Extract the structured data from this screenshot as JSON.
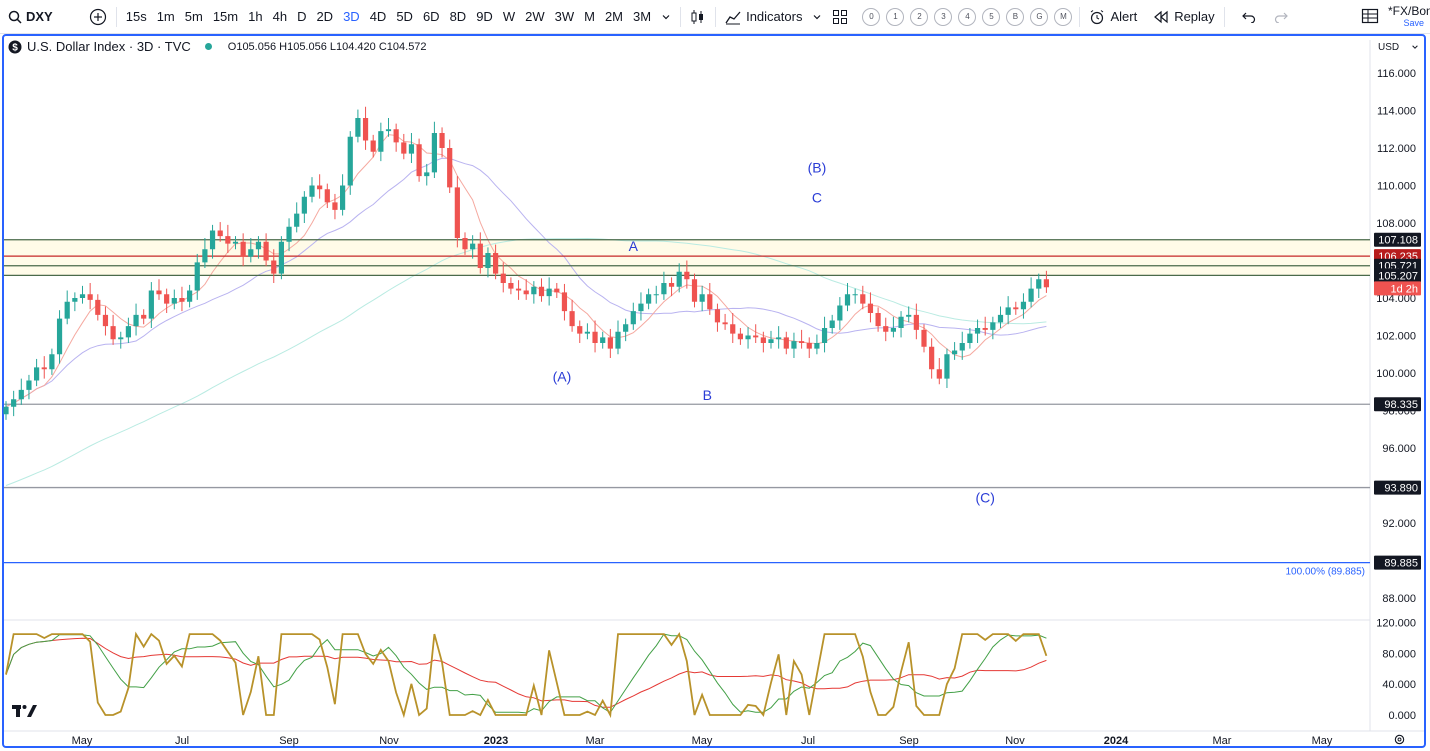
{
  "toolbar": {
    "symbol": "DXY",
    "intervals": [
      "15s",
      "1m",
      "5m",
      "15m",
      "1h",
      "4h",
      "D",
      "2D",
      "3D",
      "4D",
      "5D",
      "6D",
      "8D",
      "9D",
      "W",
      "2W",
      "3W",
      "M",
      "2M",
      "3M"
    ],
    "active_interval": "3D",
    "indicators_label": "Indicators",
    "template_buttons": [
      "0",
      "1",
      "2",
      "3",
      "4",
      "5",
      "B",
      "G",
      "M"
    ],
    "alert_label": "Alert",
    "replay_label": "Replay",
    "layout_name": "*FX/Bon",
    "save_label": "Save"
  },
  "legend": {
    "title": "U.S. Dollar Index · 3D · TVC",
    "ohlc": "O105.056 H105.056 L104.420 C104.572"
  },
  "currency": "USD",
  "chart_data": {
    "type": "candlestick",
    "x_labels": [
      "May",
      "Jul",
      "Sep",
      "Nov",
      "2023",
      "Mar",
      "May",
      "Jul",
      "Sep",
      "Nov",
      "2024",
      "Mar",
      "May"
    ],
    "y_ticks": [
      "116.000",
      "114.000",
      "112.000",
      "110.000",
      "108.000",
      "104.000",
      "102.000",
      "100.000",
      "98.000",
      "96.000",
      "92.000",
      "88.000"
    ],
    "price_tags": [
      {
        "label": "107.108",
        "value": 107.108,
        "bg": "#131722"
      },
      {
        "label": "106.235",
        "value": 106.235,
        "bg": "#b71c1c"
      },
      {
        "label": "105.721",
        "value": 105.721,
        "bg": "#131722"
      },
      {
        "label": "105.207",
        "value": 105.207,
        "bg": "#131722"
      },
      {
        "label": "1d 2h",
        "value": 104.57,
        "bg": "#ef5350"
      },
      {
        "label": "98.335",
        "value": 98.335,
        "bg": "#131722"
      },
      {
        "label": "93.890",
        "value": 93.89,
        "bg": "#131722"
      },
      {
        "label": "89.885",
        "value": 89.885,
        "bg": "#131722"
      }
    ],
    "horizontal_lines": [
      {
        "value": 107.108,
        "color": "#4a6a4a"
      },
      {
        "value": 106.235,
        "color": "#c62828"
      },
      {
        "value": 105.721,
        "color": "#4a6a4a"
      },
      {
        "value": 105.207,
        "color": "#4a6a4a"
      },
      {
        "value": 98.335,
        "color": "#9598a1"
      },
      {
        "value": 93.89,
        "color": "#9598a1"
      },
      {
        "value": 89.885,
        "color": "#2962ff"
      }
    ],
    "fib_label": "100.00% (89.885)",
    "wave_labels": [
      {
        "text": "(B)",
        "date_index": 318,
        "value": 110.7
      },
      {
        "text": "C",
        "date_index": 318,
        "value": 109.1
      },
      {
        "text": "A",
        "date_index": 246,
        "value": 106.5
      },
      {
        "text": "(A)",
        "date_index": 218,
        "value": 99.55
      },
      {
        "text": "B",
        "date_index": 275,
        "value": 98.55
      },
      {
        "text": "(C)",
        "date_index": 384,
        "value": 93.1
      }
    ],
    "closes": [
      98.2,
      98.6,
      99.1,
      99.6,
      100.3,
      100.2,
      101.0,
      102.9,
      103.8,
      104.0,
      104.2,
      103.9,
      103.1,
      102.5,
      101.8,
      101.9,
      102.5,
      103.1,
      102.9,
      104.4,
      104.2,
      103.7,
      104.0,
      103.8,
      104.4,
      105.9,
      106.6,
      107.6,
      107.3,
      106.9,
      107.0,
      106.2,
      106.6,
      107.0,
      106.0,
      105.3,
      107.0,
      107.8,
      108.5,
      109.4,
      110.0,
      109.8,
      109.1,
      108.7,
      110.0,
      112.6,
      113.6,
      112.4,
      111.8,
      112.9,
      113.0,
      112.3,
      111.7,
      112.2,
      110.5,
      110.7,
      112.8,
      112.0,
      109.9,
      107.2,
      106.6,
      106.9,
      105.6,
      106.4,
      105.3,
      104.8,
      104.5,
      104.4,
      104.2,
      104.6,
      104.1,
      104.5,
      104.3,
      103.3,
      102.5,
      102.1,
      102.2,
      101.6,
      101.9,
      101.3,
      102.2,
      102.6,
      103.3,
      103.7,
      104.2,
      104.2,
      104.8,
      104.6,
      105.4,
      105.0,
      103.8,
      104.2,
      103.4,
      102.7,
      102.6,
      102.1,
      101.8,
      102.0,
      101.9,
      101.6,
      101.8,
      101.9,
      101.3,
      101.7,
      101.6,
      101.3,
      101.6,
      102.4,
      102.8,
      103.6,
      104.2,
      104.2,
      103.7,
      103.2,
      102.5,
      102.2,
      102.4,
      103.0,
      103.1,
      102.3,
      101.4,
      100.2,
      99.7,
      101.0,
      101.2,
      101.6,
      102.1,
      102.4,
      102.3,
      102.7,
      103.1,
      103.5,
      103.4,
      103.8,
      104.5,
      105.0,
      104.572
    ],
    "close_date_indices": [
      0,
      3,
      6,
      9,
      12,
      15,
      18,
      21,
      24,
      27,
      30,
      33,
      36,
      39,
      42,
      45,
      48,
      51,
      54,
      57,
      60,
      63,
      66,
      69,
      72,
      75,
      78,
      81,
      84,
      87,
      90,
      93,
      96,
      99,
      102,
      105,
      108,
      111,
      114,
      117,
      120,
      123,
      126,
      129,
      132,
      135,
      138,
      141,
      144,
      147,
      150,
      153,
      156,
      159,
      162,
      165,
      168,
      171,
      174,
      177,
      180,
      183,
      186,
      189,
      192,
      195,
      198,
      201,
      204,
      207,
      210,
      213,
      216,
      219,
      222,
      225,
      228,
      231,
      234,
      237,
      240,
      243,
      246,
      249,
      252,
      255,
      258,
      261,
      264,
      267,
      270,
      273,
      276,
      279,
      282,
      285,
      288,
      291,
      294,
      297,
      300,
      303,
      306,
      309,
      312,
      315,
      318,
      321,
      324,
      327,
      330,
      333,
      336,
      339,
      342,
      345,
      348,
      351,
      354,
      357,
      360,
      363,
      366,
      369,
      372,
      375,
      378,
      381,
      384,
      387,
      390,
      393,
      396,
      399,
      402,
      405,
      408,
      411,
      414,
      417,
      420,
      423
    ],
    "oscillator": {
      "y_ticks": [
        "120.000",
        "80.000",
        "40.000",
        "0.000"
      ],
      "main_color": "#b8922a",
      "signal_colors": [
        "#43a047",
        "#e53935"
      ]
    },
    "colors": {
      "up": "#26a69a",
      "down": "#ef5350",
      "ma_fast": "#f5a9a0",
      "ma_mid": "#b9b3f0",
      "ma_slow": "#b9ebe2"
    }
  }
}
